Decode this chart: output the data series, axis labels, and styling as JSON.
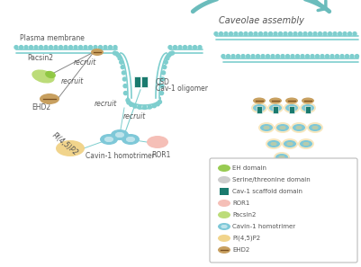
{
  "bg_color": "#ffffff",
  "membrane_color": "#7ecece",
  "dot_color": "#7ecece",
  "eh_domain_color": "#8dc63f",
  "cav1_scaffold_color": "#1a7a6e",
  "ror1_color": "#f4b8b0",
  "pacsin2_color": "#b5d96b",
  "cavin1_color": "#7ec8d8",
  "cavin1_ring_color": "#5ab5c8",
  "pi45p2_color": "#f0d080",
  "ehd2_color": "#c8a060",
  "ehd2_stripe_color": "#7a5020",
  "text_color": "#555555",
  "arrow_color": "#6bbcbc",
  "legend_items": [
    {
      "label": "EH domain",
      "color": "#8dc63f",
      "shape": "ellipse"
    },
    {
      "label": "Serine/threonine domain",
      "color": "#c8c8c8",
      "shape": "ellipse"
    },
    {
      "label": "Cav-1 scaffold domain",
      "color": "#1a7a6e",
      "shape": "square"
    },
    {
      "label": "ROR1",
      "color": "#f4b8b0",
      "shape": "ellipse"
    },
    {
      "label": "Pacsin2",
      "color": "#b5d96b",
      "shape": "ellipse"
    },
    {
      "label": "Cavin-1 homotrimer",
      "color": "#7ec8d8",
      "shape": "ring_ellipse"
    },
    {
      "label": "PI(4,5)P2",
      "color": "#f0d080",
      "shape": "ellipse"
    },
    {
      "label": "EHD2",
      "color": "#c8a060",
      "shape": "striped_ellipse"
    }
  ]
}
